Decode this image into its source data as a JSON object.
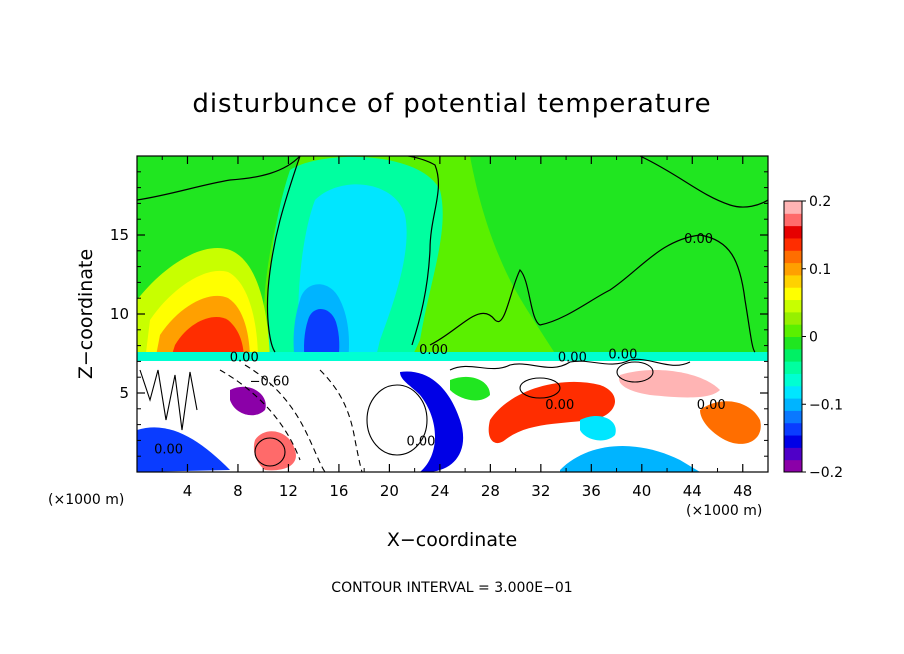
{
  "chart_data": {
    "type": "contour",
    "title": "disturbunce of potential temperature",
    "xlabel": "X−coordinate",
    "ylabel": "Z−coordinate",
    "x_unit_left": "(×1000 m)",
    "x_unit_right": "(×1000 m)",
    "footer": "CONTOUR INTERVAL = 3.000E−01",
    "xlim": [
      0,
      50
    ],
    "ylim": [
      0,
      20
    ],
    "xticks": [
      "4",
      "8",
      "12",
      "16",
      "20",
      "24",
      "28",
      "32",
      "36",
      "40",
      "44",
      "48"
    ],
    "xtick_values": [
      4,
      8,
      12,
      16,
      20,
      24,
      28,
      32,
      36,
      40,
      44,
      48
    ],
    "yticks": [
      "5",
      "10",
      "15"
    ],
    "ytick_values": [
      5,
      10,
      15
    ],
    "colorbar": {
      "min": -0.2,
      "max": 0.2,
      "ticks": [
        "0.2",
        "0.1",
        "0",
        "−0.1",
        "−0.2"
      ],
      "tick_values": [
        0.2,
        0.1,
        0,
        -0.1,
        -0.2
      ],
      "colors": [
        "#8b00a8",
        "#4f00c8",
        "#0000e6",
        "#0a3cff",
        "#0a78ff",
        "#00b4ff",
        "#00e6ff",
        "#00ffd2",
        "#00ffa0",
        "#00f064",
        "#20e620",
        "#5af000",
        "#96f000",
        "#c8ff00",
        "#ffff00",
        "#ffd200",
        "#ffa000",
        "#ff6e00",
        "#ff2d00",
        "#e60000",
        "#ff6a6a",
        "#ffb4b4"
      ]
    },
    "contour_labels": [
      {
        "text": "0.00",
        "x": 44.5,
        "z": 14.8
      },
      {
        "text": "0.00",
        "x": 8.5,
        "z": 7.3
      },
      {
        "text": "−0.60",
        "x": 10.5,
        "z": 5.8
      },
      {
        "text": "0.00",
        "x": 2.5,
        "z": 1.5
      },
      {
        "text": "0.00",
        "x": 23.5,
        "z": 7.8
      },
      {
        "text": "0.00",
        "x": 34.5,
        "z": 7.3
      },
      {
        "text": "0.00",
        "x": 33.5,
        "z": 4.3
      },
      {
        "text": "0.00",
        "x": 22.5,
        "z": 2.0
      },
      {
        "text": "0.00",
        "x": 45.5,
        "z": 4.3
      },
      {
        "text": "0.00",
        "x": 38.5,
        "z": 7.5
      }
    ]
  }
}
